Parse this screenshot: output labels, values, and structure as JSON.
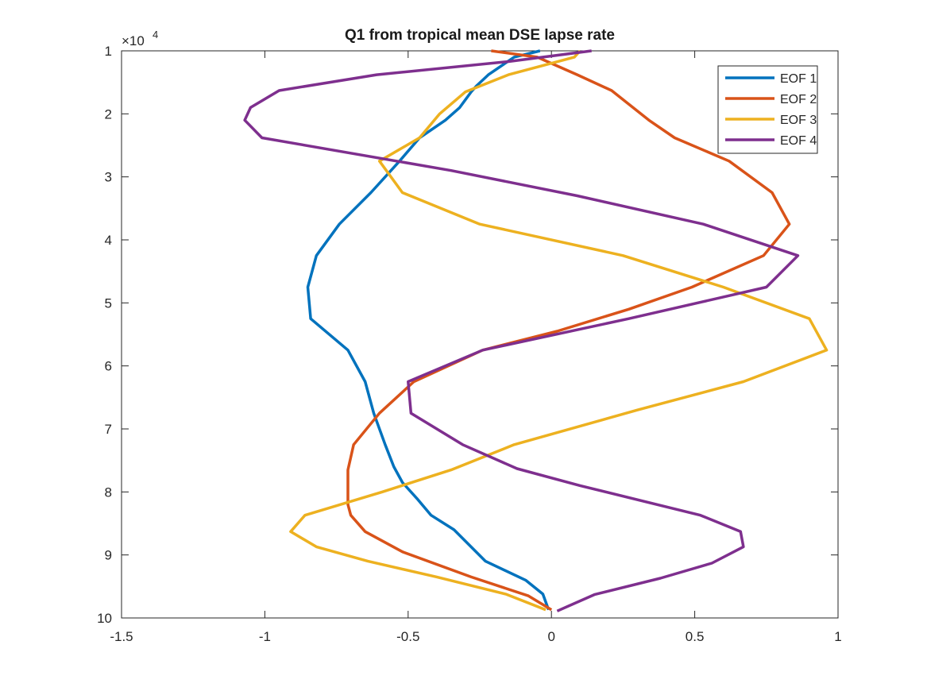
{
  "chart_data": {
    "type": "line",
    "title": "Q1 from tropical mean DSE lapse rate",
    "xlabel": "",
    "ylabel": "",
    "xlim": [
      -1.5,
      1
    ],
    "ylim": [
      10000,
      100000
    ],
    "y_direction": "reverse",
    "y_exponent_label": "×10",
    "y_exponent_power": "4",
    "x_ticks": [
      -1.5,
      -1,
      -0.5,
      0,
      0.5,
      1
    ],
    "x_tick_labels": [
      "-1.5",
      "-1",
      "-0.5",
      "0",
      "0.5",
      "1"
    ],
    "y_ticks": [
      10000,
      20000,
      30000,
      40000,
      50000,
      60000,
      70000,
      80000,
      90000,
      100000
    ],
    "y_tick_labels": [
      "1",
      "2",
      "3",
      "4",
      "5",
      "6",
      "7",
      "8",
      "9",
      "10"
    ],
    "grid": false,
    "legend_position": "top-right",
    "series": [
      {
        "name": "EOF 1",
        "color": "#0072BD",
        "x": [
          -0.04,
          -0.13,
          -0.22,
          -0.26,
          -0.28,
          -0.32,
          -0.37,
          -0.46,
          -0.53,
          -0.63,
          -0.74,
          -0.82,
          -0.85,
          -0.84,
          -0.71,
          -0.65,
          -0.62,
          -0.58,
          -0.55,
          -0.52,
          -0.47,
          -0.42,
          -0.34,
          -0.23,
          -0.09,
          -0.03,
          -0.01
        ],
        "y": [
          10000,
          11000,
          13800,
          15500,
          16500,
          19000,
          21000,
          23800,
          27500,
          32500,
          37500,
          42500,
          47500,
          52500,
          57500,
          62500,
          67500,
          72500,
          76000,
          78500,
          81000,
          83700,
          86000,
          91000,
          94000,
          96200,
          98700
        ]
      },
      {
        "name": "EOF 2",
        "color": "#D95319",
        "x": [
          -0.21,
          -0.05,
          0.09,
          0.21,
          0.34,
          0.43,
          0.62,
          0.77,
          0.83,
          0.74,
          0.49,
          0.27,
          0.02,
          -0.24,
          -0.48,
          -0.6,
          -0.69,
          -0.71,
          -0.71,
          -0.71,
          -0.7,
          -0.65,
          -0.52,
          -0.28,
          -0.08,
          0
        ],
        "y": [
          10000,
          11000,
          13800,
          16300,
          21000,
          23800,
          27500,
          32500,
          37500,
          42500,
          47500,
          51000,
          54500,
          57500,
          62500,
          67500,
          72500,
          76500,
          80000,
          82000,
          83700,
          86300,
          89500,
          93500,
          96500,
          98700
        ]
      },
      {
        "name": "EOF 3",
        "color": "#EDB120",
        "x": [
          0.1,
          0.08,
          -0.15,
          -0.3,
          -0.39,
          -0.46,
          -0.6,
          -0.52,
          -0.25,
          0.25,
          0.6,
          0.9,
          0.96,
          0.67,
          0.3,
          -0.13,
          -0.35,
          -0.59,
          -0.86,
          -0.91,
          -0.82,
          -0.64,
          -0.4,
          -0.16,
          -0.02
        ],
        "y": [
          10000,
          11000,
          13800,
          16500,
          20000,
          23800,
          27500,
          32500,
          37500,
          42500,
          47500,
          52500,
          57500,
          62500,
          67000,
          72500,
          76500,
          80000,
          83700,
          86300,
          88700,
          91000,
          93500,
          96200,
          98700
        ]
      },
      {
        "name": "EOF 4",
        "color": "#7E2F8E",
        "x": [
          0.14,
          -0.15,
          -0.61,
          -0.95,
          -1.05,
          -1.07,
          -1.01,
          -0.35,
          0.09,
          0.53,
          0.86,
          0.75,
          0.27,
          -0.24,
          -0.5,
          -0.49,
          -0.31,
          -0.12,
          0.1,
          0.52,
          0.66,
          0.67,
          0.56,
          0.38,
          0.15,
          0.02
        ],
        "y": [
          10000,
          11700,
          13800,
          16300,
          19000,
          21000,
          23800,
          29000,
          33000,
          37500,
          42500,
          47500,
          52500,
          57500,
          62500,
          67500,
          72500,
          76300,
          79000,
          83700,
          86300,
          88700,
          91300,
          93700,
          96300,
          98900
        ]
      }
    ]
  }
}
